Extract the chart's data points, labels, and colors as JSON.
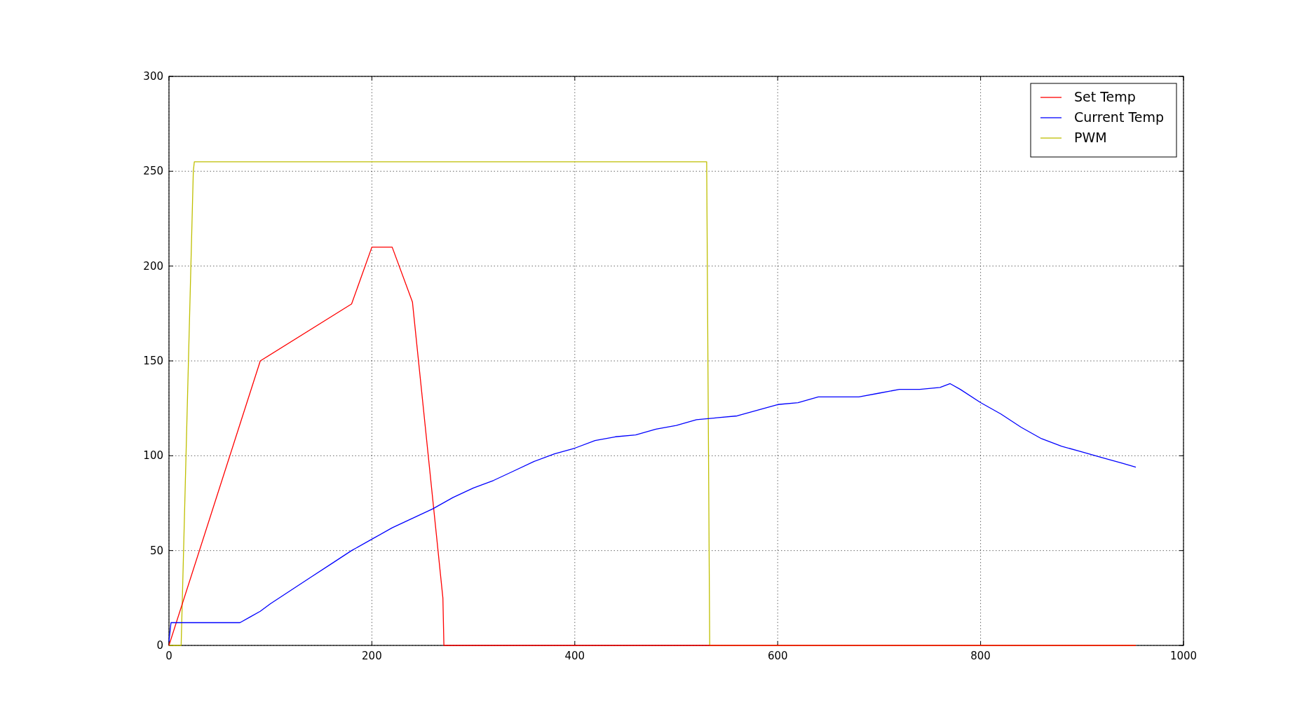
{
  "chart_data": {
    "type": "line",
    "xlim": [
      0,
      1000
    ],
    "ylim": [
      0,
      300
    ],
    "xticks": [
      0,
      200,
      400,
      600,
      800,
      1000
    ],
    "yticks": [
      0,
      50,
      100,
      150,
      200,
      250,
      300
    ],
    "grid": true,
    "legend": "top right",
    "line_style": "solid",
    "marker": "none",
    "series": [
      {
        "name": "Set Temp",
        "color": "#ff0000",
        "x": [
          0,
          90,
          180,
          200,
          220,
          240,
          270,
          271,
          953
        ],
        "values": [
          0,
          150,
          180,
          210,
          210,
          181,
          25,
          0,
          0
        ]
      },
      {
        "name": "Current Temp",
        "color": "#0000ff",
        "x": [
          0,
          2,
          60,
          70,
          80,
          90,
          100,
          120,
          140,
          160,
          180,
          200,
          220,
          240,
          260,
          280,
          300,
          320,
          340,
          360,
          380,
          400,
          420,
          440,
          460,
          480,
          500,
          520,
          540,
          560,
          580,
          600,
          620,
          640,
          660,
          680,
          700,
          720,
          740,
          760,
          770,
          780,
          800,
          820,
          840,
          860,
          880,
          900,
          920,
          940,
          953
        ],
        "values": [
          2,
          12,
          12,
          12,
          15,
          18,
          22,
          29,
          36,
          43,
          50,
          56,
          62,
          67,
          72,
          78,
          83,
          87,
          92,
          97,
          101,
          104,
          108,
          110,
          111,
          114,
          116,
          119,
          120,
          121,
          124,
          127,
          128,
          131,
          131,
          131,
          133,
          135,
          135,
          136,
          138,
          135,
          128,
          122,
          115,
          109,
          105,
          102,
          99,
          96,
          94
        ]
      },
      {
        "name": "PWM",
        "color": "#bfbf00",
        "x": [
          0,
          12,
          24,
          25,
          530,
          533,
          953
        ],
        "values": [
          0,
          0,
          250,
          255,
          255,
          0,
          0
        ]
      }
    ]
  }
}
